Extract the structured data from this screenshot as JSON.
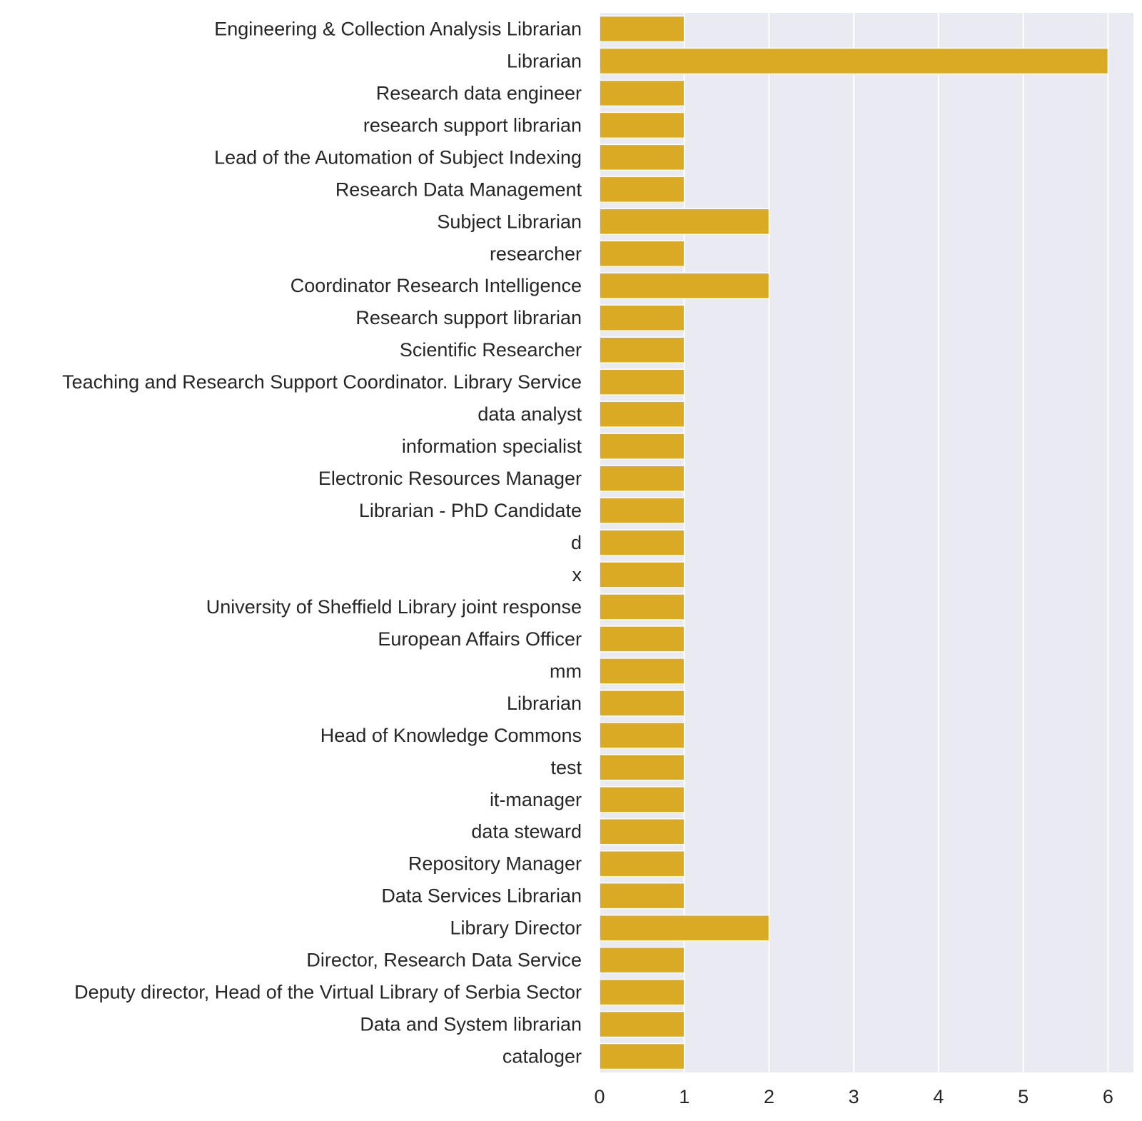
{
  "chart_data": {
    "type": "bar",
    "orientation": "horizontal",
    "categories": [
      "Engineering & Collection Analysis Librarian",
      "Librarian",
      "Research data engineer ",
      "research support librarian",
      "Lead of the Automation of Subject Indexing",
      "Research Data Management",
      "Subject Librarian",
      "researcher",
      "Coordinator Research Intelligence",
      "Research support librarian",
      "Scientific Researcher",
      "Teaching and Research Support Coordinator. Library Service",
      "data analyst",
      "information specialist",
      "Electronic Resources Manager",
      "Librarian - PhD Candidate",
      "d",
      "x",
      "University of Sheffield Library joint response",
      "European Affairs Officer",
      "mm",
      "Librarian ",
      "Head of Knowledge Commons",
      "test",
      "it-manager",
      "data steward",
      "Repository Manager",
      "Data Services Librarian",
      "Library Director",
      "Director, Research Data Service",
      "Deputy director, Head of the Virtual Library of Serbia Sector",
      "Data and System librarian",
      "cataloger"
    ],
    "values": [
      1,
      6,
      1,
      1,
      1,
      1,
      2,
      1,
      2,
      1,
      1,
      1,
      1,
      1,
      1,
      1,
      1,
      1,
      1,
      1,
      1,
      1,
      1,
      1,
      1,
      1,
      1,
      1,
      2,
      1,
      1,
      1,
      1
    ],
    "xticks": [
      "0",
      "1",
      "2",
      "3",
      "4",
      "5",
      "6"
    ],
    "xlim": [
      0,
      6.3
    ],
    "grid": true,
    "colors": {
      "bar": "#DAAA25",
      "background": "#EAEAF2",
      "grid": "#FFFFFF",
      "text": "#262626"
    }
  }
}
